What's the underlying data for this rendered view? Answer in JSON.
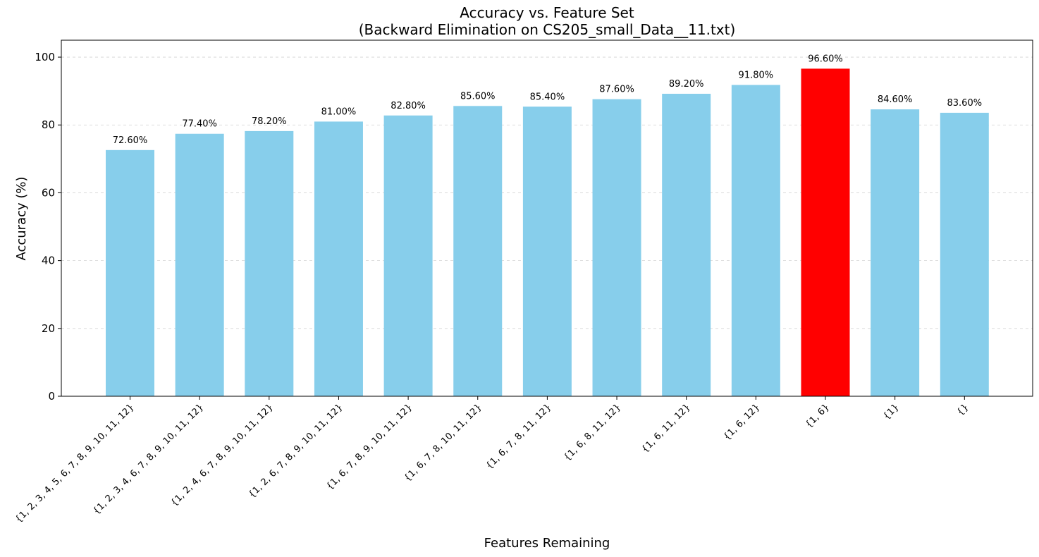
{
  "chart_data": {
    "type": "bar",
    "title_line1": "Accuracy vs. Feature Set",
    "title_line2": "(Backward Elimination on CS205_small_Data__11.txt)",
    "xlabel": "Features Remaining",
    "ylabel": "Accuracy (%)",
    "ylim": [
      0,
      105
    ],
    "yticks": [
      0,
      20,
      40,
      60,
      80,
      100
    ],
    "grid": "y-dashed",
    "categories": [
      "{1, 2, 3, 4, 5, 6, 7, 8, 9, 10, 11, 12}",
      "{1, 2, 3, 4, 6, 7, 8, 9, 10, 11, 12}",
      "{1, 2, 4, 6, 7, 8, 9, 10, 11, 12}",
      "{1, 2, 6, 7, 8, 9, 10, 11, 12}",
      "{1, 6, 7, 8, 9, 10, 11, 12}",
      "{1, 6, 7, 8, 10, 11, 12}",
      "{1, 6, 7, 8, 11, 12}",
      "{1, 6, 8, 11, 12}",
      "{1, 6, 11, 12}",
      "{1, 6, 12}",
      "{1, 6}",
      "{1}",
      "{}"
    ],
    "values": [
      72.6,
      77.4,
      78.2,
      81.0,
      82.8,
      85.6,
      85.4,
      87.6,
      89.2,
      91.8,
      96.6,
      84.6,
      83.6
    ],
    "labels": [
      "72.60%",
      "77.40%",
      "78.20%",
      "81.00%",
      "82.80%",
      "85.60%",
      "85.40%",
      "87.60%",
      "89.20%",
      "91.80%",
      "96.60%",
      "84.60%",
      "83.60%"
    ],
    "bar_color": "#87ceeb",
    "highlight_color": "#ff0000",
    "highlight_index": 10
  }
}
